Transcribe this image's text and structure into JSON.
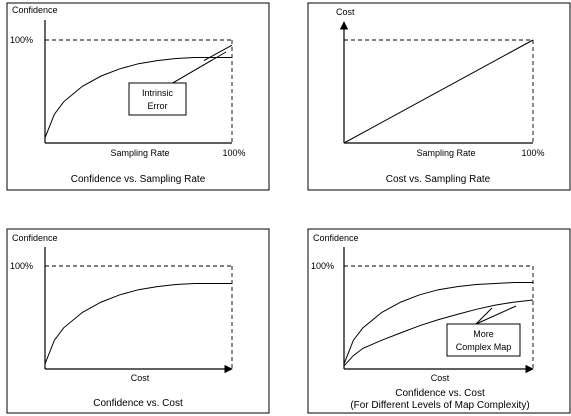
{
  "chart_data": [
    {
      "type": "line",
      "title": "Confidence vs. Sampling Rate",
      "xlabel": "Sampling Rate",
      "ylabel": "Confidence",
      "x_max_label": "100%",
      "y_max_label": "100%",
      "xlim": [
        0,
        100
      ],
      "ylim": [
        0,
        100
      ],
      "series": [
        {
          "x": [
            0,
            5,
            10,
            20,
            30,
            40,
            50,
            60,
            70,
            80,
            90,
            100
          ],
          "y": [
            5,
            28,
            40,
            55,
            65,
            72,
            77,
            80,
            82,
            83,
            83,
            83
          ]
        },
        {
          "x": [
            85,
            100
          ],
          "y": [
            80,
            95
          ]
        }
      ],
      "annotation": {
        "line1": "Intrinsic",
        "line2": "Error"
      }
    },
    {
      "type": "line",
      "title": "Cost vs. Sampling Rate",
      "xlabel": "Sampling Rate",
      "ylabel": "Cost",
      "x_max_label": "100%",
      "xlim": [
        0,
        100
      ],
      "ylim": [
        0,
        100
      ],
      "series": [
        {
          "x": [
            0,
            100
          ],
          "y": [
            0,
            100
          ]
        }
      ]
    },
    {
      "type": "line",
      "title": "Confidence vs. Cost",
      "xlabel": "Cost",
      "ylabel": "Confidence",
      "y_max_label": "100%",
      "xlim": [
        0,
        100
      ],
      "ylim": [
        0,
        100
      ],
      "series": [
        {
          "x": [
            0,
            5,
            10,
            20,
            30,
            40,
            50,
            60,
            70,
            80,
            90,
            100
          ],
          "y": [
            5,
            28,
            40,
            55,
            65,
            72,
            77,
            80,
            82,
            83,
            83,
            83
          ]
        }
      ]
    },
    {
      "type": "line",
      "title": "Confidence vs. Cost",
      "subtitle": "(For Different Levels of Map Complexity)",
      "xlabel": "Cost",
      "ylabel": "Confidence",
      "y_max_label": "100%",
      "xlim": [
        0,
        100
      ],
      "ylim": [
        0,
        100
      ],
      "series": [
        {
          "x": [
            0,
            5,
            10,
            20,
            30,
            40,
            50,
            60,
            70,
            80,
            90,
            100
          ],
          "y": [
            5,
            28,
            40,
            55,
            65,
            72,
            77,
            80,
            82,
            83,
            84,
            84
          ]
        },
        {
          "x": [
            0,
            5,
            10,
            20,
            30,
            40,
            50,
            60,
            70,
            80,
            90,
            100
          ],
          "y": [
            3,
            13,
            20,
            28,
            35,
            42,
            48,
            53,
            58,
            62,
            65,
            67
          ]
        }
      ],
      "annotation": {
        "line1": "More",
        "line2": "Complex Map"
      }
    }
  ]
}
